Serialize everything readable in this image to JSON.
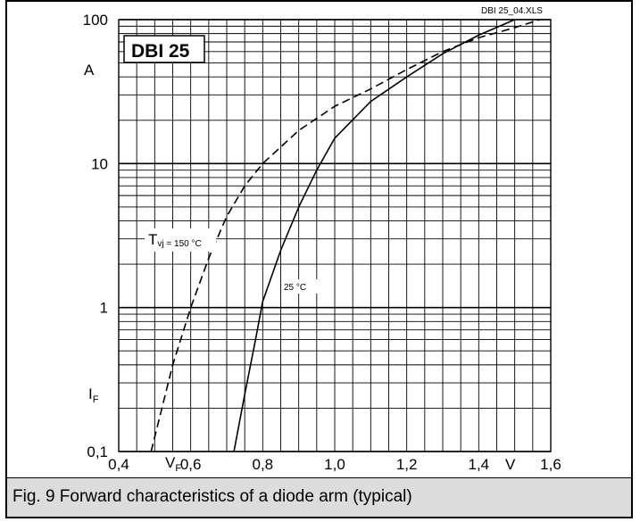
{
  "chart_data": {
    "type": "line",
    "x_axis": {
      "ticks": [
        0.4,
        0.6,
        0.8,
        1.0,
        1.2,
        1.4,
        1.6
      ],
      "tick_labels": [
        "0,4",
        "0,6",
        "0,8",
        "1,0",
        "1,2",
        "1,4",
        "1,6"
      ],
      "label_main": "V",
      "label_sub": "F",
      "unit": "V",
      "range": [
        0.4,
        1.6
      ],
      "minor_step": 0.05
    },
    "y_axis": {
      "scale": "log",
      "ticks": [
        0.1,
        1,
        10,
        100
      ],
      "tick_labels": [
        "0,1",
        "1",
        "10",
        "100"
      ],
      "label_main": "I",
      "label_sub": "F",
      "unit": "A",
      "range": [
        0.1,
        100
      ]
    },
    "grid": true,
    "series": [
      {
        "name_main": "T",
        "name_sub": "vj = 150 °C",
        "style": "dashed",
        "points": [
          [
            0.49,
            0.1
          ],
          [
            0.52,
            0.2
          ],
          [
            0.55,
            0.4
          ],
          [
            0.6,
            1.0
          ],
          [
            0.65,
            2.2
          ],
          [
            0.7,
            4.3
          ],
          [
            0.75,
            7.0
          ],
          [
            0.8,
            10.0
          ],
          [
            0.9,
            17.0
          ],
          [
            1.0,
            25.0
          ],
          [
            1.1,
            33.0
          ],
          [
            1.2,
            45.0
          ],
          [
            1.3,
            60.0
          ],
          [
            1.4,
            75.0
          ],
          [
            1.5,
            88.0
          ],
          [
            1.57,
            100.0
          ]
        ]
      },
      {
        "name": "25 °C",
        "style": "solid",
        "points": [
          [
            0.72,
            0.1
          ],
          [
            0.75,
            0.25
          ],
          [
            0.78,
            0.6
          ],
          [
            0.8,
            1.1
          ],
          [
            0.85,
            2.5
          ],
          [
            0.9,
            5.0
          ],
          [
            0.95,
            9.0
          ],
          [
            1.0,
            15.0
          ],
          [
            1.1,
            27.0
          ],
          [
            1.2,
            40.0
          ],
          [
            1.3,
            58.0
          ],
          [
            1.4,
            78.0
          ],
          [
            1.5,
            100.0
          ]
        ]
      }
    ],
    "annotations": {
      "device_label": "DBI 25",
      "file_label": "DBI 25_04.XLS"
    }
  },
  "caption": "Fig. 9 Forward characteristics of a diode arm (typical)"
}
